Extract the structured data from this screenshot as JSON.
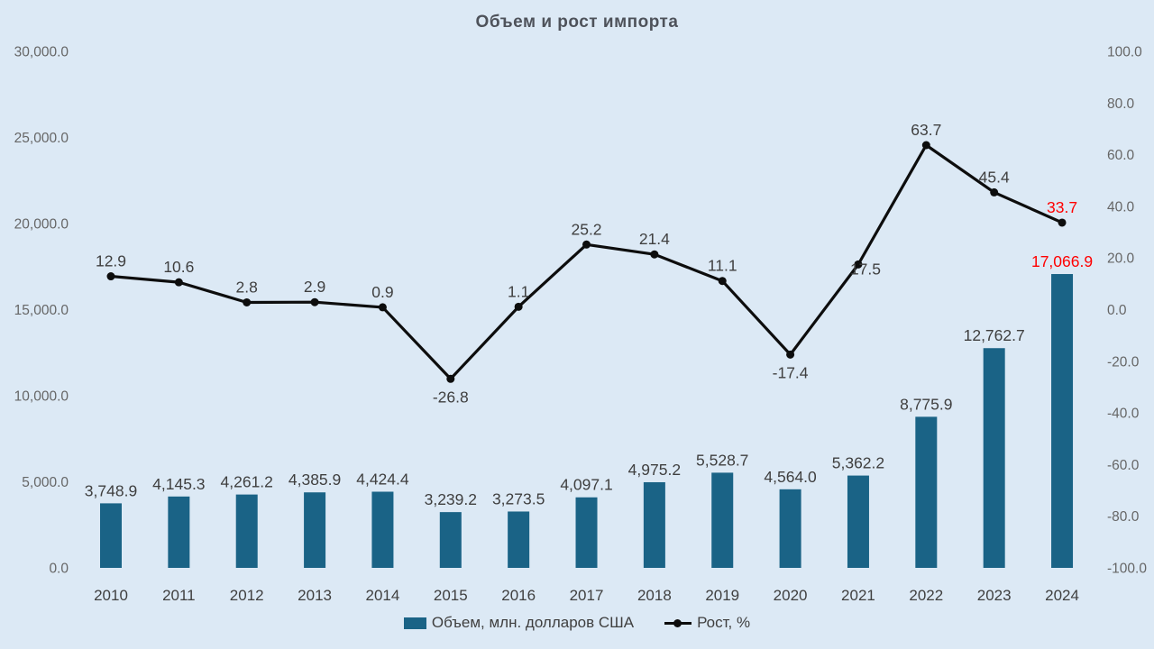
{
  "title": "Объем и рост импорта",
  "legend": {
    "bar_label": "Объем, млн. долларов США",
    "line_label": "Рост, %"
  },
  "colors": {
    "background": "#dce9f5",
    "bar": "#1a6386",
    "line": "#0d0d0d",
    "marker": "#0d0d0d",
    "data_label": "#3f3f3f",
    "axis_label": "#666666",
    "year_label": "#3f3f3f",
    "title": "#4e525a",
    "highlight": "#ff0000"
  },
  "chart_data": {
    "type": "combo",
    "title": "Объем и рост импорта",
    "categories": [
      "2010",
      "2011",
      "2012",
      "2013",
      "2014",
      "2015",
      "2016",
      "2017",
      "2018",
      "2019",
      "2020",
      "2021",
      "2022",
      "2023",
      "2024"
    ],
    "series": [
      {
        "name": "Объем, млн. долларов США",
        "type": "bar",
        "axis": "left",
        "values": [
          3748.9,
          4145.3,
          4261.2,
          4385.9,
          4424.4,
          3239.2,
          3273.5,
          4097.1,
          4975.2,
          5528.7,
          4564.0,
          5362.2,
          8775.9,
          12762.7,
          17066.9
        ]
      },
      {
        "name": "Рост, %",
        "type": "line",
        "axis": "right",
        "values": [
          12.9,
          10.6,
          2.8,
          2.9,
          0.9,
          -26.8,
          1.1,
          25.2,
          21.4,
          11.1,
          -17.4,
          17.5,
          63.7,
          45.4,
          33.7
        ]
      }
    ],
    "left_axis": {
      "min": 0,
      "max": 30000,
      "step": 5000
    },
    "right_axis": {
      "min": -100,
      "max": 100,
      "step": 20
    },
    "grid": false,
    "legend_position": "bottom",
    "highlight_last_point": true,
    "line_label_positions": [
      "above",
      "above",
      "above",
      "above",
      "above",
      "below",
      "above",
      "above",
      "above",
      "above",
      "below",
      "right",
      "above",
      "above",
      "above"
    ]
  }
}
